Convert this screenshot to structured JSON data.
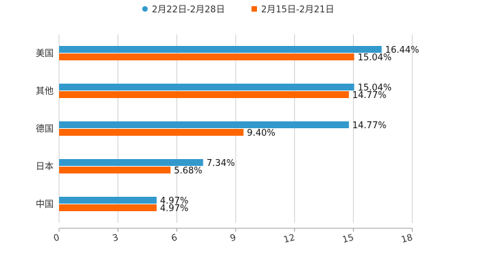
{
  "chart_data": {
    "type": "bar",
    "orientation": "horizontal",
    "title": "",
    "xlabel": "",
    "ylabel": "",
    "categories": [
      "美国",
      "其他",
      "德国",
      "日本",
      "中国"
    ],
    "series": [
      {
        "name": "2月22日-2月28日",
        "color": "#3399cc",
        "marker": "circle",
        "values": [
          16.44,
          15.04,
          14.77,
          7.34,
          4.97
        ],
        "labels": [
          "16.44%",
          "15.04%",
          "14.77%",
          "7.34%",
          "4.97%"
        ]
      },
      {
        "name": "2月15日-2月21日",
        "color": "#ff6600",
        "marker": "square",
        "values": [
          15.04,
          14.77,
          9.4,
          5.68,
          4.97
        ],
        "labels": [
          "15.04%",
          "14.77%",
          "9.40%",
          "5.68%",
          "4.97%"
        ]
      }
    ],
    "xlim": [
      0,
      18
    ],
    "xticks": [
      "0",
      "3",
      "6",
      "9",
      "12",
      "15",
      "18"
    ],
    "grid": "vertical",
    "legend": "top-center"
  }
}
